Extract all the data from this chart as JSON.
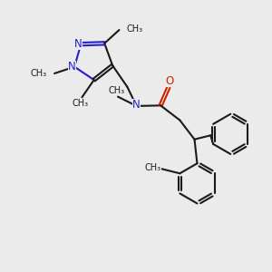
{
  "background_color": "#ebebeb",
  "bond_color": "#1a1a1a",
  "N_pyrazole_color": "#2222cc",
  "N_amide_color": "#2222cc",
  "O_color": "#cc2200",
  "line_width": 1.5,
  "double_sep": 0.055,
  "font_size_N": 8.5,
  "font_size_O": 8.5,
  "font_size_label": 7.0,
  "xlim": [
    0,
    10
  ],
  "ylim": [
    0,
    10
  ]
}
